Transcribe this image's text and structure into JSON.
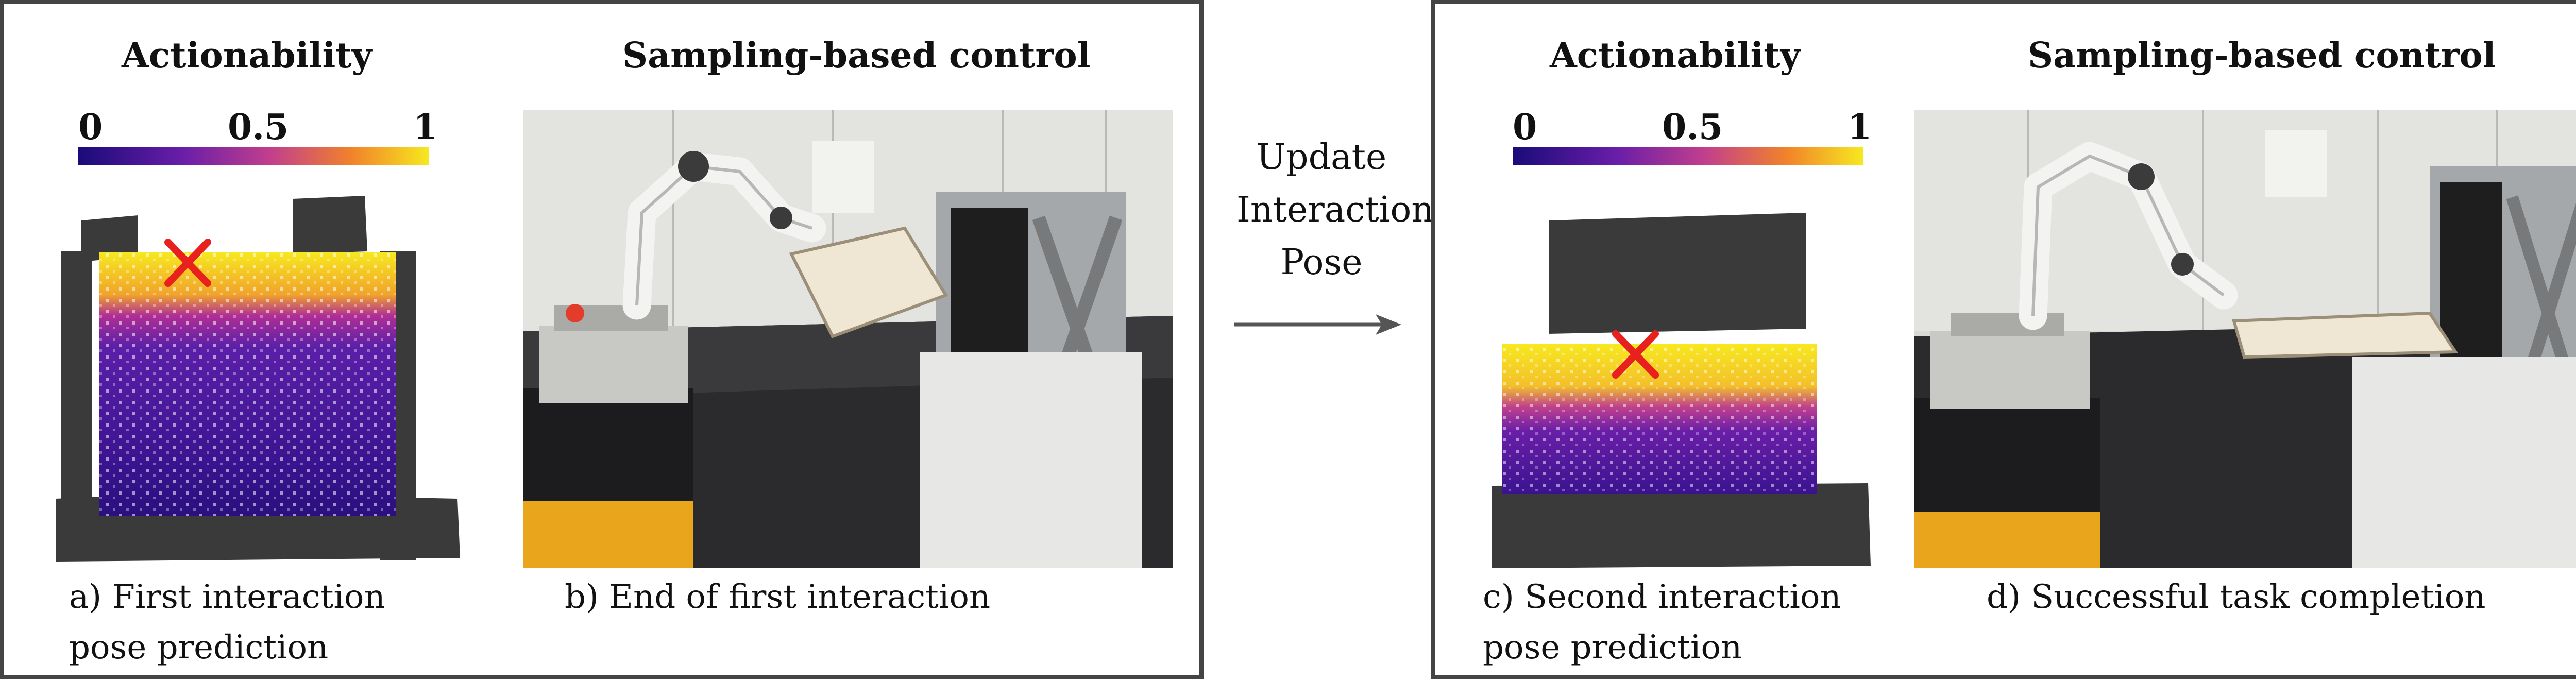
{
  "panels": [
    {
      "left_title": "Actionability",
      "right_title": "Sampling-based control",
      "colorbar_ticks": [
        "0",
        "0.5",
        "1"
      ],
      "left_caption_lines": [
        "a) First interaction",
        "pose prediction"
      ],
      "right_caption": "b) End of first interaction"
    },
    {
      "left_title": "Actionability",
      "right_title": "Sampling-based control",
      "colorbar_ticks": [
        "0",
        "0.5",
        "1"
      ],
      "left_caption_lines": [
        "c) Second interaction",
        "pose prediction"
      ],
      "right_caption": "d) Successful task completion"
    }
  ],
  "arrow_label_lines": [
    "Update",
    "Interaction",
    "Pose"
  ],
  "colors": {
    "border": "#444444",
    "colormap": [
      "#1a0b7a",
      "#6a1ea8",
      "#c23f8c",
      "#f1822b",
      "#f7e81f"
    ],
    "marker": "#e8201e",
    "cloud_dark": "#3a3a3a"
  }
}
